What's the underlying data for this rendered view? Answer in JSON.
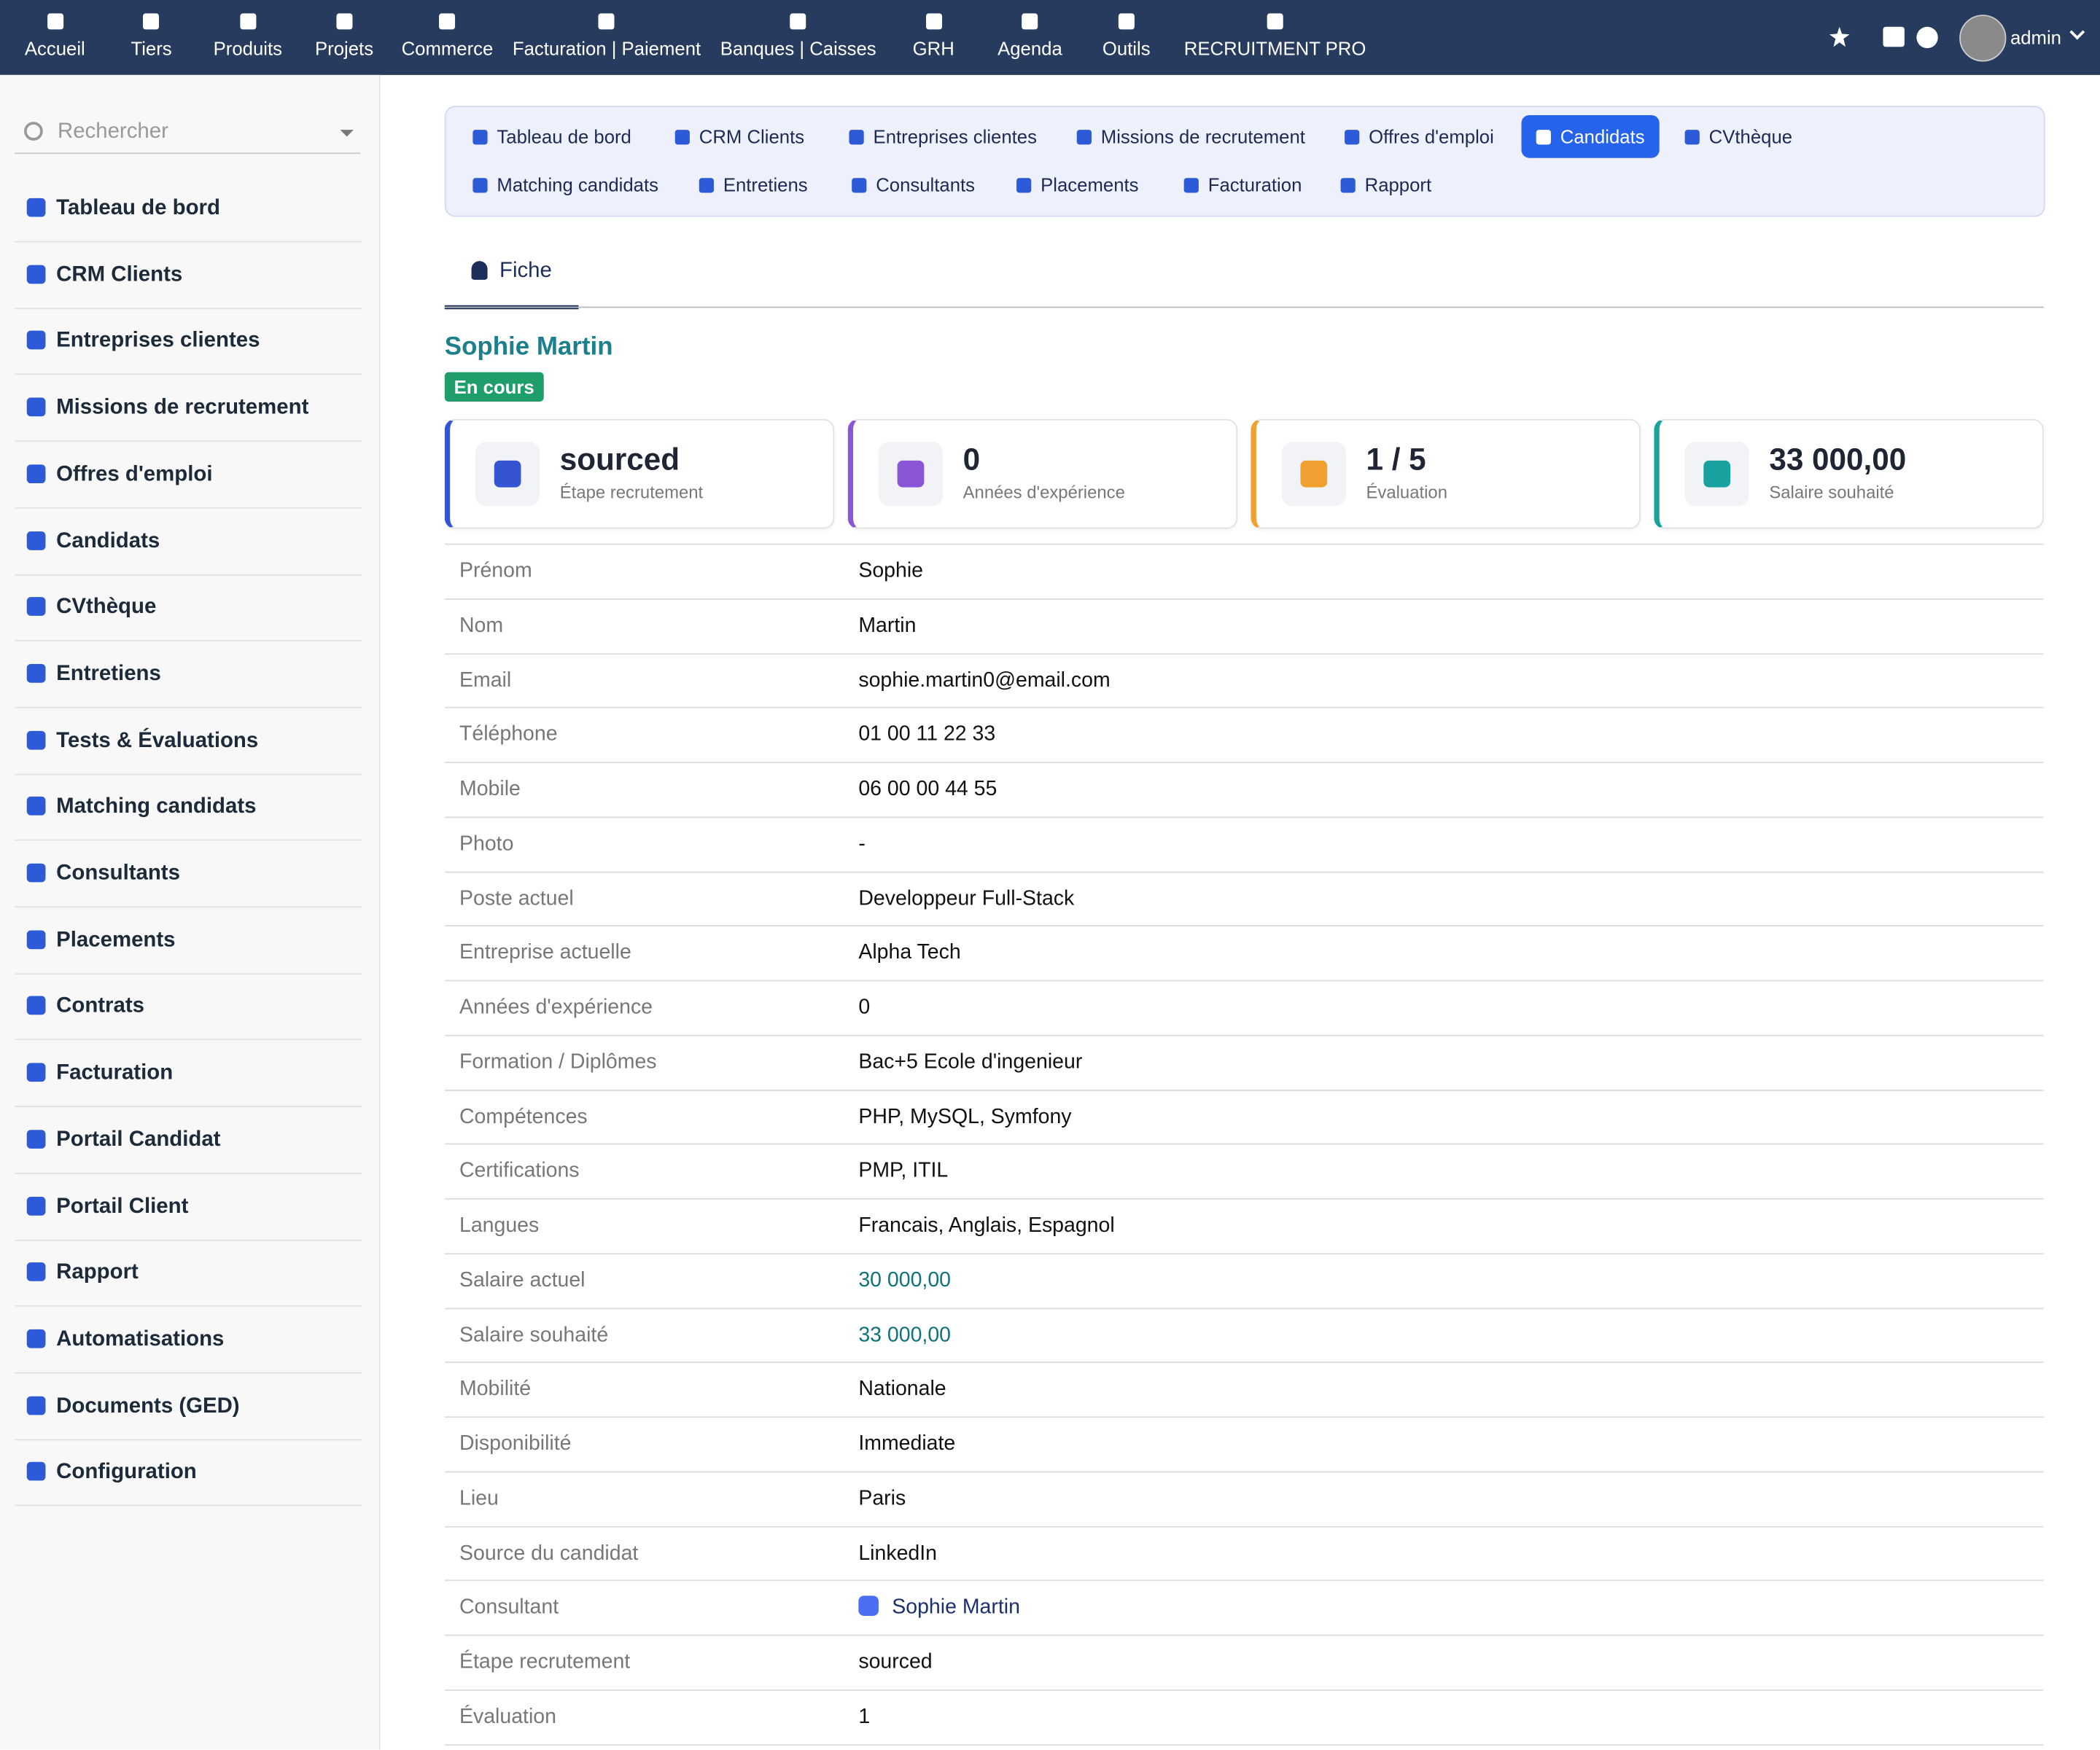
{
  "topnav": {
    "items": [
      "Accueil",
      "Tiers",
      "Produits",
      "Projets",
      "Commerce",
      "Facturation | Paiement",
      "Banques | Caisses",
      "GRH",
      "Agenda",
      "Outils",
      "RECRUITMENT PRO"
    ],
    "user": "admin"
  },
  "sidebar": {
    "search_placeholder": "Rechercher",
    "items": [
      "Tableau de bord",
      "CRM Clients",
      "Entreprises clientes",
      "Missions de recrutement",
      "Offres d'emploi",
      "Candidats",
      "CVthèque",
      "Entretiens",
      "Tests & Évaluations",
      "Matching candidats",
      "Consultants",
      "Placements",
      "Contrats",
      "Facturation",
      "Portail Candidat",
      "Portail Client",
      "Rapport",
      "Automatisations",
      "Documents (GED)",
      "Configuration"
    ]
  },
  "module_tabs": {
    "items": [
      "Tableau de bord",
      "CRM Clients",
      "Entreprises clientes",
      "Missions de recrutement",
      "Offres d'emploi",
      "Candidats",
      "CVthèque",
      "Matching candidats",
      "Entretiens",
      "Consultants",
      "Placements",
      "Facturation",
      "Rapport"
    ],
    "active_index": 5
  },
  "record_tabs": [
    "Fiche"
  ],
  "record": {
    "name": "Sophie Martin",
    "status": "En cours"
  },
  "stats": [
    {
      "value": "sourced",
      "label": "Étape recrutement",
      "color": "#3454d1"
    },
    {
      "value": 0,
      "label": "Années d'expérience",
      "color": "#8a55d6"
    },
    {
      "value": "1 / 5",
      "label": "Évaluation",
      "color": "#f0a030"
    },
    {
      "value": "33 000,00",
      "label": "Salaire souhaité",
      "color": "#17a2a0"
    }
  ],
  "fields": [
    [
      "Prénom",
      "Sophie"
    ],
    [
      "Nom",
      "Martin"
    ],
    [
      "Email",
      "sophie.martin0@email.com"
    ],
    [
      "Téléphone",
      "01 00 11 22 33"
    ],
    [
      "Mobile",
      "06 00 00 44 55"
    ],
    [
      "Photo",
      "-"
    ],
    [
      "Poste actuel",
      "Developpeur Full-Stack"
    ],
    [
      "Entreprise actuelle",
      "Alpha Tech"
    ],
    [
      "Années d'expérience",
      "0"
    ],
    [
      "Formation / Diplômes",
      "Bac+5 Ecole d'ingenieur"
    ],
    [
      "Compétences",
      "PHP, MySQL, Symfony"
    ],
    [
      "Certifications",
      "PMP, ITIL"
    ],
    [
      "Langues",
      "Francais, Anglais, Espagnol"
    ],
    [
      "Salaire actuel",
      "30 000,00"
    ],
    [
      "Salaire souhaité",
      "33 000,00"
    ],
    [
      "Mobilité",
      "Nationale"
    ],
    [
      "Disponibilité",
      "Immediate"
    ],
    [
      "Lieu",
      "Paris"
    ],
    [
      "Source du candidat",
      "LinkedIn"
    ],
    [
      "Consultant",
      "Sophie Martin"
    ],
    [
      "Étape recrutement",
      "sourced"
    ],
    [
      "Évaluation",
      "1"
    ]
  ]
}
